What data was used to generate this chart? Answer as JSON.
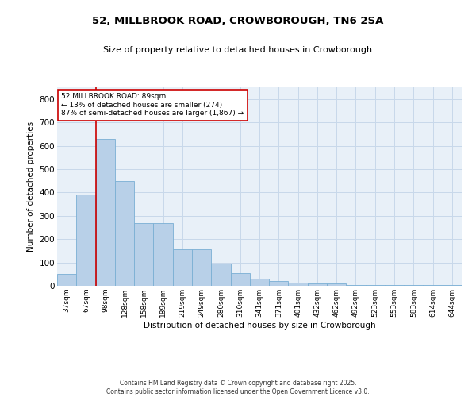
{
  "title": "52, MILLBROOK ROAD, CROWBOROUGH, TN6 2SA",
  "subtitle": "Size of property relative to detached houses in Crowborough",
  "xlabel": "Distribution of detached houses by size in Crowborough",
  "ylabel": "Number of detached properties",
  "categories": [
    "37sqm",
    "67sqm",
    "98sqm",
    "128sqm",
    "158sqm",
    "189sqm",
    "219sqm",
    "249sqm",
    "280sqm",
    "310sqm",
    "341sqm",
    "371sqm",
    "401sqm",
    "432sqm",
    "462sqm",
    "492sqm",
    "523sqm",
    "553sqm",
    "583sqm",
    "614sqm",
    "644sqm"
  ],
  "values": [
    50,
    390,
    630,
    450,
    270,
    270,
    155,
    155,
    95,
    55,
    30,
    20,
    15,
    10,
    10,
    5,
    5,
    3,
    3,
    5,
    2
  ],
  "bar_color": "#b8d0e8",
  "bar_edge_color": "#7aafd4",
  "grid_color": "#c8d8ea",
  "background_color": "#e8f0f8",
  "vline_color": "#cc0000",
  "annotation_text": "52 MILLBROOK ROAD: 89sqm\n← 13% of detached houses are smaller (274)\n87% of semi-detached houses are larger (1,867) →",
  "annotation_box_color": "#ffffff",
  "annotation_box_edge": "#cc0000",
  "footer": "Contains HM Land Registry data © Crown copyright and database right 2025.\nContains public sector information licensed under the Open Government Licence v3.0.",
  "ylim": [
    0,
    850
  ],
  "yticks": [
    0,
    100,
    200,
    300,
    400,
    500,
    600,
    700,
    800
  ]
}
